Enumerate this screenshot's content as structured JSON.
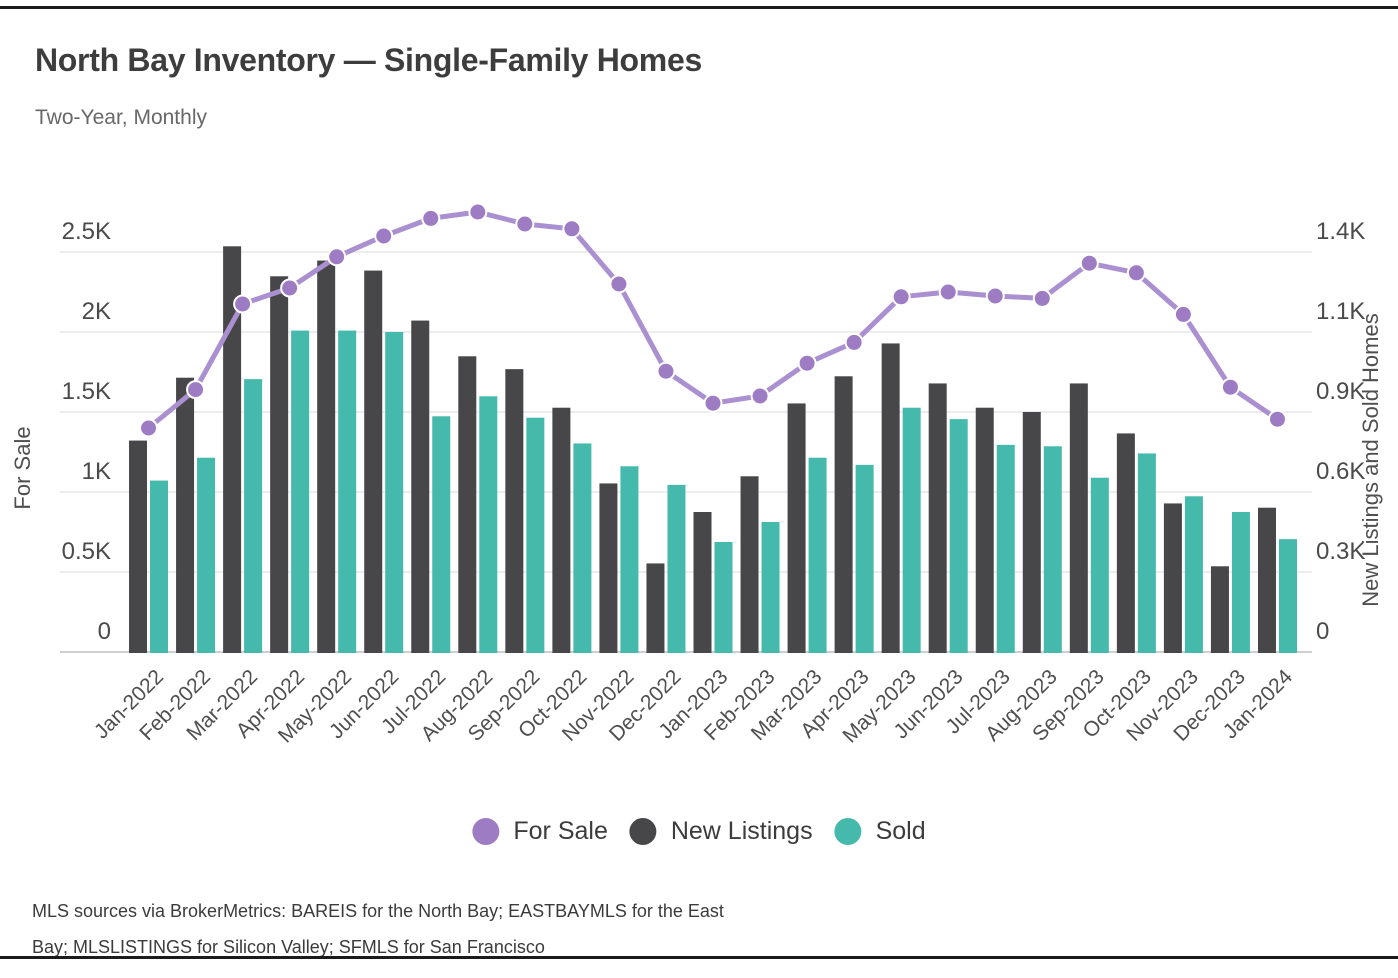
{
  "page": {
    "title": "North Bay Inventory — Single-Family Homes",
    "subtitle": "Two-Year, Monthly"
  },
  "legend": [
    {
      "label": "For Sale",
      "color": "#9e7cc3"
    },
    {
      "label": "New Listings",
      "color": "#474749"
    },
    {
      "label": "Sold",
      "color": "#45b9ab"
    }
  ],
  "footer": {
    "line1": "MLS sources via BrokerMetrics: BAREIS for the North Bay; EASTBAYMLS for the East",
    "line2": "Bay; MLSLISTINGS for Silicon Valley; SFMLS for San Francisco"
  },
  "chart_data": {
    "type": "mixed-bar-line",
    "title": "North Bay Inventory — Single-Family Homes",
    "subtitle": "Two-Year, Monthly",
    "grid": true,
    "legend_position": "bottom",
    "x": [
      "Jan-2022",
      "Feb-2022",
      "Mar-2022",
      "Apr-2022",
      "May-2022",
      "Jun-2022",
      "Jul-2022",
      "Aug-2022",
      "Sep-2022",
      "Oct-2022",
      "Nov-2022",
      "Dec-2022",
      "Jan-2023",
      "Feb-2023",
      "Mar-2023",
      "Apr-2023",
      "May-2023",
      "Jun-2023",
      "Jul-2023",
      "Aug-2023",
      "Sep-2023",
      "Oct-2023",
      "Nov-2023",
      "Dec-2023",
      "Jan-2024"
    ],
    "left_axis": {
      "label": "For Sale",
      "max": 2500,
      "ticks": [
        {
          "v": 0,
          "t": "0"
        },
        {
          "v": 500,
          "t": "0.5K"
        },
        {
          "v": 1000,
          "t": "1K"
        },
        {
          "v": 1500,
          "t": "1.5K"
        },
        {
          "v": 2000,
          "t": "2K"
        },
        {
          "v": 2500,
          "t": "2.5K"
        }
      ]
    },
    "right_axis": {
      "label": "New Listings and Sold Homes",
      "max": 1400,
      "tick_labels": [
        "0",
        "0.3K",
        "0.6K",
        "0.9K",
        "1.1K",
        "1.4K"
      ]
    },
    "series": [
      {
        "name": "For Sale",
        "type": "line",
        "axis": "left",
        "line_color": "#aa90d0",
        "marker_color": "#9e7cc3",
        "values": [
          1400,
          1640,
          2175,
          2275,
          2470,
          2600,
          2710,
          2750,
          2675,
          2645,
          2300,
          1755,
          1555,
          1600,
          1805,
          1935,
          2220,
          2250,
          2225,
          2210,
          2430,
          2370,
          2110,
          1655,
          1455
        ]
      },
      {
        "name": "New Listings",
        "type": "bar",
        "axis": "right",
        "color": "#474749",
        "values": [
          740,
          960,
          1420,
          1315,
          1370,
          1335,
          1160,
          1035,
          990,
          855,
          590,
          310,
          490,
          615,
          870,
          965,
          1080,
          940,
          855,
          840,
          940,
          765,
          520,
          300,
          505
        ]
      },
      {
        "name": "Sold",
        "type": "bar",
        "axis": "right",
        "color": "#45b9ab",
        "values": [
          600,
          680,
          955,
          1125,
          1125,
          1120,
          825,
          895,
          820,
          730,
          650,
          585,
          385,
          455,
          680,
          655,
          855,
          815,
          725,
          720,
          610,
          695,
          545,
          490,
          395
        ]
      }
    ]
  }
}
